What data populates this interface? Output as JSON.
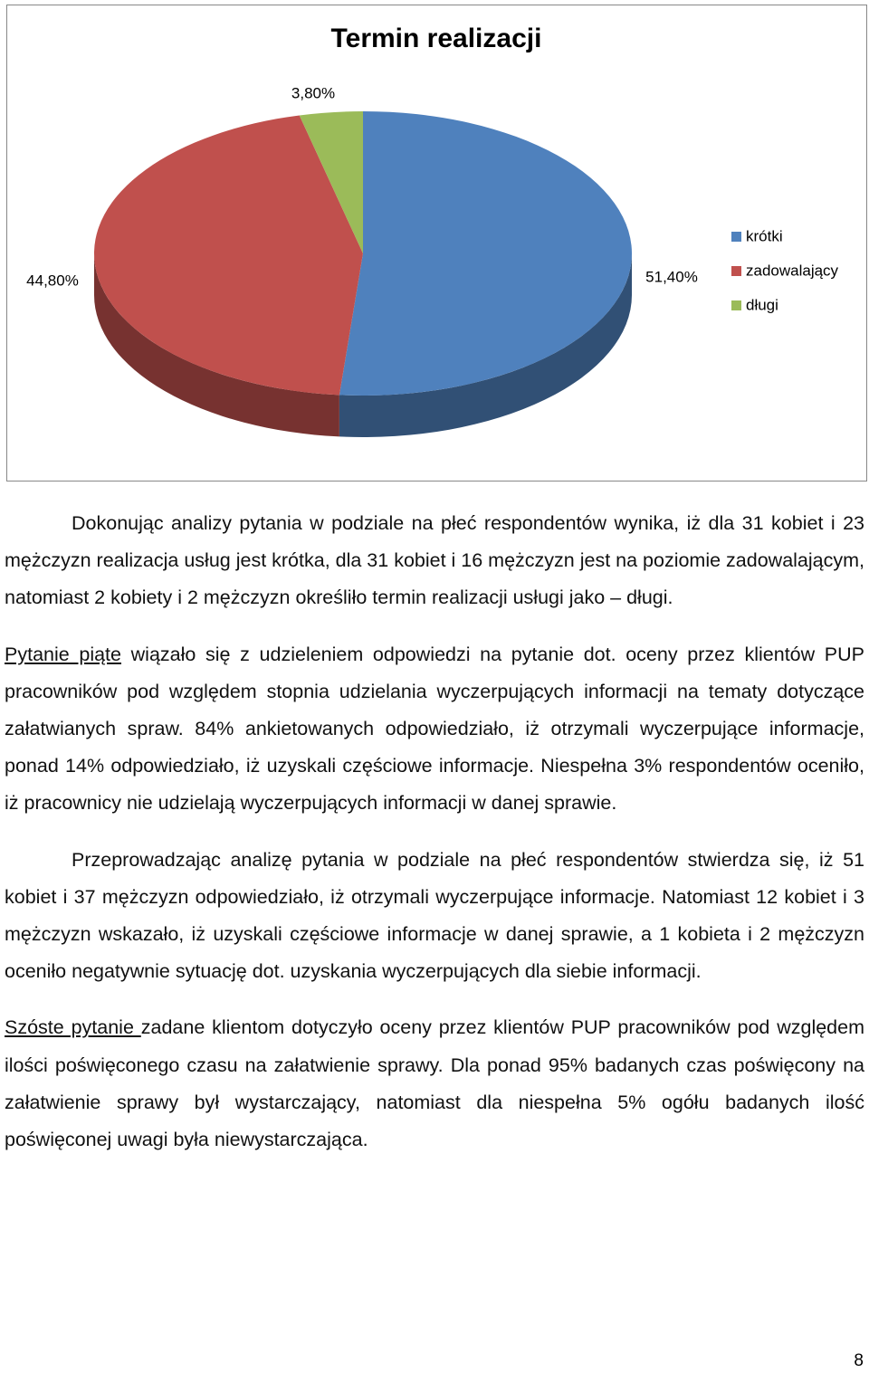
{
  "chart_data": {
    "type": "pie",
    "title": "Termin realizacji",
    "categories": [
      "krótki",
      "zadowalający",
      "długi"
    ],
    "values": [
      51.4,
      44.8,
      3.8
    ],
    "value_labels": [
      "51,40%",
      "44,80%",
      "3,80%"
    ],
    "colors": [
      "#4f81bd",
      "#c0504d",
      "#9bbb59"
    ],
    "legend": "right"
  },
  "paragraphs": [
    {
      "text": "Dokonując analizy pytania w podziale na płeć respondentów wynika, iż dla 31 kobiet i 23 mężczyzn realizacja usług jest krótka, dla 31 kobiet i 16 mężczyzn jest na poziomie zadowalającym, natomiast 2 kobiety i 2 mężczyzn określiło termin realizacji usługi jako – długi."
    },
    {
      "lead": "Pytanie piąte",
      "text": " wiązało się z udzieleniem odpowiedzi na pytanie dot. oceny przez klientów PUP pracowników pod względem stopnia udzielania wyczerpujących informacji na tematy dotyczące załatwianych spraw. 84% ankietowanych odpowiedziało, iż otrzymali wyczerpujące informacje, ponad 14% odpowiedziało, iż uzyskali częściowe informacje. Niespełna 3% respondentów oceniło, iż pracownicy nie udzielają wyczerpujących informacji w danej sprawie."
    },
    {
      "text": "Przeprowadzając analizę pytania w podziale na płeć respondentów stwierdza się, iż 51 kobiet i 37 mężczyzn odpowiedziało, iż otrzymali wyczerpujące informacje. Natomiast 12 kobiet i 3 mężczyzn wskazało, iż uzyskali częściowe informacje w danej sprawie, a 1 kobieta i 2 mężczyzn oceniło negatywnie sytuację dot. uzyskania wyczerpujących dla siebie informacji."
    },
    {
      "lead": "Szóste pytanie ",
      "text": "zadane klientom dotyczyło oceny przez klientów PUP pracowników pod względem ilości poświęconego czasu na załatwienie sprawy. Dla ponad 95% badanych czas poświęcony na załatwienie sprawy był wystarczający, natomiast dla niespełna 5% ogółu badanych ilość poświęconej uwagi była niewystarczająca."
    }
  ],
  "page_number": "8"
}
